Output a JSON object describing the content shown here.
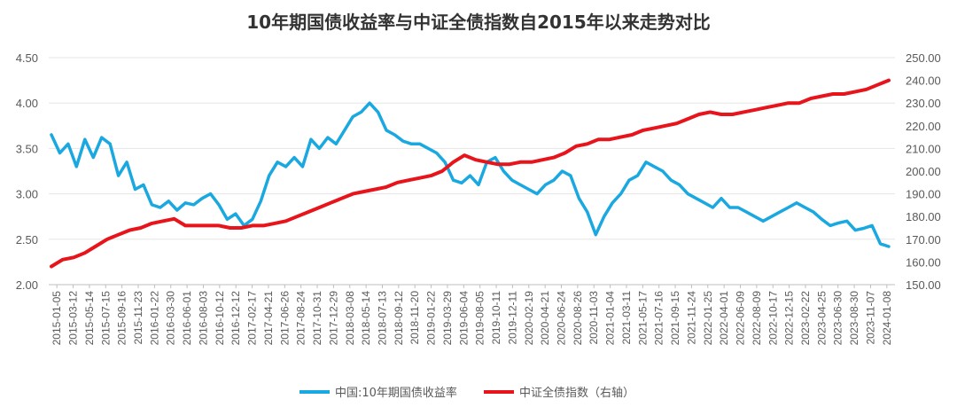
{
  "chart_data": {
    "type": "line",
    "title": "10年期国债收益率与中证全债指数自2015年以来走势对比",
    "y_left": {
      "min": 2.0,
      "max": 4.5,
      "ticks": [
        "2.00",
        "2.50",
        "3.00",
        "3.50",
        "4.00",
        "4.50"
      ]
    },
    "y_right": {
      "min": 150,
      "max": 250,
      "ticks": [
        "150.00",
        "160.00",
        "170.00",
        "180.00",
        "190.00",
        "200.00",
        "210.00",
        "220.00",
        "230.00",
        "240.00",
        "250.00"
      ]
    },
    "x_labels": [
      "2015-01-05",
      "2015-03-12",
      "2015-05-14",
      "2015-07-15",
      "2015-09-16",
      "2015-11-23",
      "2016-01-22",
      "2016-03-30",
      "2016-06-01",
      "2016-08-03",
      "2016-10-12",
      "2016-12-12",
      "2017-02-17",
      "2017-04-21",
      "2017-06-26",
      "2017-08-24",
      "2017-10-31",
      "2017-12-29",
      "2018-03-08",
      "2018-05-14",
      "2018-07-13",
      "2018-09-12",
      "2018-11-20",
      "2019-01-22",
      "2019-03-29",
      "2019-06-04",
      "2019-08-05",
      "2019-10-11",
      "2019-12-11",
      "2020-02-19",
      "2020-04-21",
      "2020-06-24",
      "2020-08-26",
      "2020-11-03",
      "2021-01-04",
      "2021-03-11",
      "2021-05-17",
      "2021-07-16",
      "2021-09-15",
      "2021-11-24",
      "2022-01-25",
      "2022-04-01",
      "2022-06-09",
      "2022-08-09",
      "2022-10-17",
      "2022-12-15",
      "2023-02-22",
      "2023-04-25",
      "2023-06-30",
      "2023-08-30",
      "2023-11-07",
      "2024-01-08"
    ],
    "series": [
      {
        "name": "中国:10年期国债收益率",
        "axis": "left",
        "color": "#1aa8e0",
        "values": [
          3.65,
          3.45,
          3.55,
          3.3,
          3.6,
          3.4,
          3.62,
          3.55,
          3.2,
          3.35,
          3.05,
          3.1,
          2.88,
          2.85,
          2.92,
          2.82,
          2.9,
          2.88,
          2.95,
          3.0,
          2.88,
          2.72,
          2.78,
          2.65,
          2.72,
          2.92,
          3.2,
          3.35,
          3.3,
          3.4,
          3.3,
          3.6,
          3.5,
          3.62,
          3.55,
          3.7,
          3.85,
          3.9,
          4.0,
          3.9,
          3.7,
          3.65,
          3.58,
          3.55,
          3.55,
          3.5,
          3.45,
          3.35,
          3.15,
          3.12,
          3.2,
          3.1,
          3.35,
          3.4,
          3.25,
          3.15,
          3.1,
          3.05,
          3.0,
          3.1,
          3.15,
          3.25,
          3.2,
          2.95,
          2.8,
          2.55,
          2.75,
          2.9,
          3.0,
          3.15,
          3.2,
          3.35,
          3.3,
          3.25,
          3.15,
          3.1,
          3.0,
          2.95,
          2.9,
          2.85,
          2.95,
          2.85,
          2.85,
          2.8,
          2.75,
          2.7,
          2.75,
          2.8,
          2.85,
          2.9,
          2.85,
          2.8,
          2.72,
          2.65,
          2.68,
          2.7,
          2.6,
          2.62,
          2.65,
          2.45,
          2.42
        ]
      },
      {
        "name": "中证全债指数（右轴）",
        "axis": "right",
        "color": "#e8141b",
        "values": [
          158,
          161,
          162,
          164,
          167,
          170,
          172,
          174,
          175,
          177,
          178,
          179,
          176,
          176,
          176,
          176,
          175,
          175,
          176,
          176,
          177,
          178,
          180,
          182,
          184,
          186,
          188,
          190,
          191,
          192,
          193,
          195,
          196,
          197,
          198,
          200,
          204,
          207,
          205,
          204,
          203,
          203,
          204,
          204,
          205,
          206,
          208,
          211,
          212,
          214,
          214,
          215,
          216,
          218,
          219,
          220,
          221,
          223,
          225,
          226,
          225,
          225,
          226,
          227,
          228,
          229,
          230,
          230,
          232,
          233,
          234,
          234,
          235,
          236,
          238,
          240
        ]
      }
    ],
    "legend_position": "bottom-center"
  },
  "legend": {
    "series1_label": "中国:10年期国债收益率",
    "series2_label": "中证全债指数（右轴）"
  }
}
